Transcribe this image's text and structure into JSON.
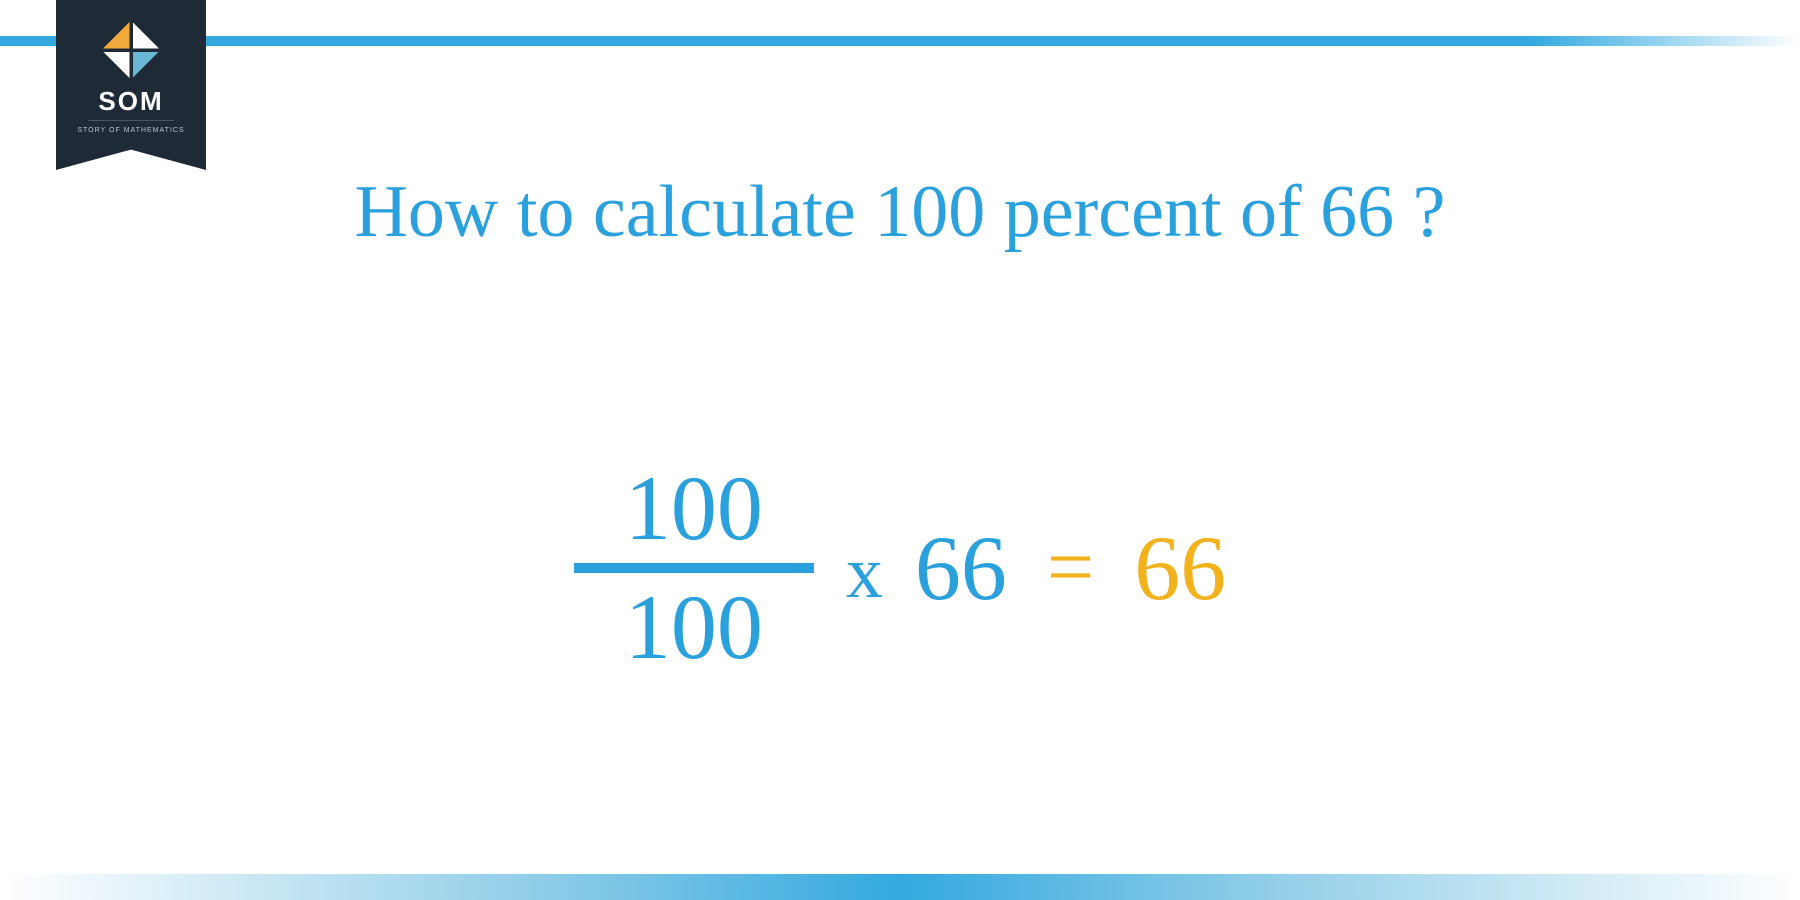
{
  "colors": {
    "primary_blue": "#2aa0dc",
    "accent_orange": "#f2b21b",
    "badge_bg": "#1f2a37",
    "logo_white": "#ffffff",
    "logo_sub": "#b9c2cb",
    "logo_tri_orange": "#f2a93a",
    "logo_tri_blue": "#6bb7d6",
    "logo_tri_white": "#ffffff",
    "bar_gradient": "#33a9e0"
  },
  "logo": {
    "text": "SOM",
    "subtitle": "STORY OF MATHEMATICS"
  },
  "title": {
    "text": "How to calculate 100 percent of 66 ?",
    "fontsize": 74,
    "color": "#2aa0dc"
  },
  "equation": {
    "fraction": {
      "numerator": "100",
      "denominator": "100",
      "bar_color": "#2aa0dc"
    },
    "operator": "x",
    "operand": "66",
    "equals": "=",
    "result": "66",
    "number_color": "#2aa0dc",
    "result_color": "#f2b21b",
    "fontsize": 92
  }
}
